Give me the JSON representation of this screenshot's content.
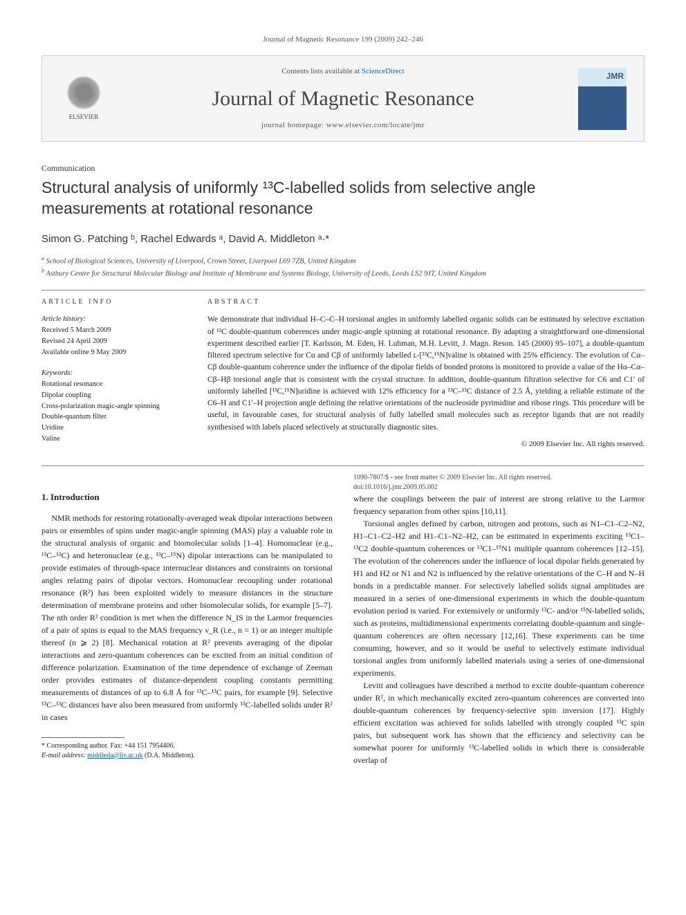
{
  "header": {
    "citation": "Journal of Magnetic Resonance 199 (2009) 242–246"
  },
  "masthead": {
    "contents_prefix": "Contents lists available at ",
    "contents_link": "ScienceDirect",
    "journal_name": "Journal of Magnetic Resonance",
    "homepage_prefix": "journal homepage: ",
    "homepage_url": "www.elsevier.com/locate/jmr",
    "publisher_name": "ELSEVIER",
    "cover_abbrev": "JMR"
  },
  "article": {
    "type_label": "Communication",
    "title": "Structural analysis of uniformly ¹³C-labelled solids from selective angle measurements at rotational resonance",
    "authors_html": "Simon G. Patching ᵇ, Rachel Edwards ᵃ, David A. Middleton ᵃ·*",
    "affiliations": {
      "a": "School of Biological Sciences, University of Liverpool, Crown Street, Liverpool L69 7ZB, United Kingdom",
      "b": "Astbury Centre for Structural Molecular Biology and Institute of Membrane and Systems Biology, University of Leeds, Leeds LS2 9JT, United Kingdom"
    }
  },
  "info": {
    "heading": "ARTICLE INFO",
    "history_label": "Article history:",
    "history": [
      "Received 5 March 2009",
      "Revised 24 April 2009",
      "Available online 9 May 2009"
    ],
    "keywords_label": "Keywords:",
    "keywords": [
      "Rotational resonance",
      "Dipolar coupling",
      "Cross-polarization magic-angle spinning",
      "Double-quantum filter",
      "Uridine",
      "Valine"
    ]
  },
  "abstract": {
    "heading": "ABSTRACT",
    "text": "We demonstrate that individual H–C–C–H torsional angles in uniformly labelled organic solids can be estimated by selective excitation of ¹³C double-quantum coherences under magic-angle spinning at rotational resonance. By adapting a straightforward one-dimensional experiment described earlier [T. Karlsson, M. Eden, H. Luhman, M.H. Levitt, J. Magn. Reson. 145 (2000) 95–107], a double-quantum filtered spectrum selective for Cα and Cβ of uniformly labelled ʟ-[¹³C,¹⁵N]valine is obtained with 25% efficiency. The evolution of Cα–Cβ double-quantum coherence under the influence of the dipolar fields of bonded protons is monitored to provide a value of the Hα–Cα–Cβ–Hβ torsional angle that is consistent with the crystal structure. In addition, double-quantum filtration selective for C6 and C1′ of uniformly labelled [¹³C,¹⁵N]uridine is achieved with 12% efficiency for a ¹³C–¹³C distance of 2.5 Å, yielding a reliable estimate of the C6–H and C1′–H projection angle defining the relative orientations of the nucleoside pyrimidine and ribose rings. This procedure will be useful, in favourable cases, for structural analysis of fully labelled small molecules such as receptor ligands that are not readily synthesised with labels placed selectively at structurally diagnostic sites.",
    "copyright": "© 2009 Elsevier Inc. All rights reserved."
  },
  "body": {
    "section1_heading": "1. Introduction",
    "p1": "NMR methods for restoring rotationally-averaged weak dipolar interactions between pairs or ensembles of spins under magic-angle spinning (MAS) play a valuable role in the structural analysis of organic and biomolecular solids [1–4]. Homonuclear (e.g., ¹³C–¹³C) and heteronuclear (e.g., ¹³C–¹⁵N) dipolar interactions can be manipulated to provide estimates of through-space internuclear distances and constraints on torsional angles relating pairs of dipolar vectors. Homonuclear recoupling under rotational resonance (R²) has been exploited widely to measure distances in the structure determination of membrane proteins and other biomolecular solids, for example [5–7]. The nth order R² condition is met when the difference N_IS in the Larmor frequencies of a pair of spins is equal to the MAS frequency ν_R (i.e., n = 1) or an integer multiple thereof (n ⩾ 2) [8]. Mechanical rotation at R² prevents averaging of the dipolar interactions and zero-quantum coherences can be excited from an initial condition of difference polarization. Examination of the time dependence of exchange of Zeeman order provides estimates of distance-dependent coupling constants permitting measurements of distances of up to 6.8 Å for ¹³C–¹³C pairs, for example [9]. Selective ¹³C–¹³C distances have also been measured from uniformly ¹³C-labelled solids under R² in cases",
    "p2": "where the couplings between the pair of interest are strong relative to the Larmor frequency separation from other spins [10,11].",
    "p3": "Torsional angles defined by carbon, nitrogen and protons, such as N1–C1–C2–N2, H1–C1–C2–H2 and H1–C1–N2–H2, can be estimated in experiments exciting ¹³C1–¹³C2 double-quantum coherences or ¹³C1–¹⁵N1 multiple quantum coherences [12–15]. The evolution of the coherences under the influence of local dipolar fields generated by H1 and H2 or N1 and N2 is influenced by the relative orientations of the C–H and N–H bonds in a predictable manner. For selectively labelled solids signal amplitudes are measured in a series of one-dimensional experiments in which the double-quantum evolution period is varied. For extensively or uniformly ¹³C- and/or ¹⁵N-labelled solids, such as proteins, multidimensional experiments correlating double-quantum and single-quantum coherences are often necessary [12,16]. These experiments can be time consuming, however, and so it would be useful to selectively estimate individual torsional angles from uniformly labelled materials using a series of one-dimensional experiments.",
    "p4": "Levitt and colleagues have described a method to excite double-quantum coherence under R², in which mechanically excited zero-quantum coherences are converted into double-quantum coherences by frequency-selective spin inversion [17]. Highly efficient excitation was achieved for solids labelled with strongly coupled ¹³C spin pairs, but subsequent work has shown that the efficiency and selectivity can be somewhat poorer for uniformly ¹³C-labelled solids in which there is considerable overlap of"
  },
  "footnote": {
    "corr_label": "* Corresponding author. Fax: +44 151 7954406.",
    "email_label": "E-mail address:",
    "email": "middleda@liv.ac.uk",
    "email_name": "(D.A. Middleton)."
  },
  "footer": {
    "issn_line": "1090-7807/$ - see front matter © 2009 Elsevier Inc. All rights reserved.",
    "doi_line": "doi:10.1016/j.jmr.2009.05.002"
  }
}
